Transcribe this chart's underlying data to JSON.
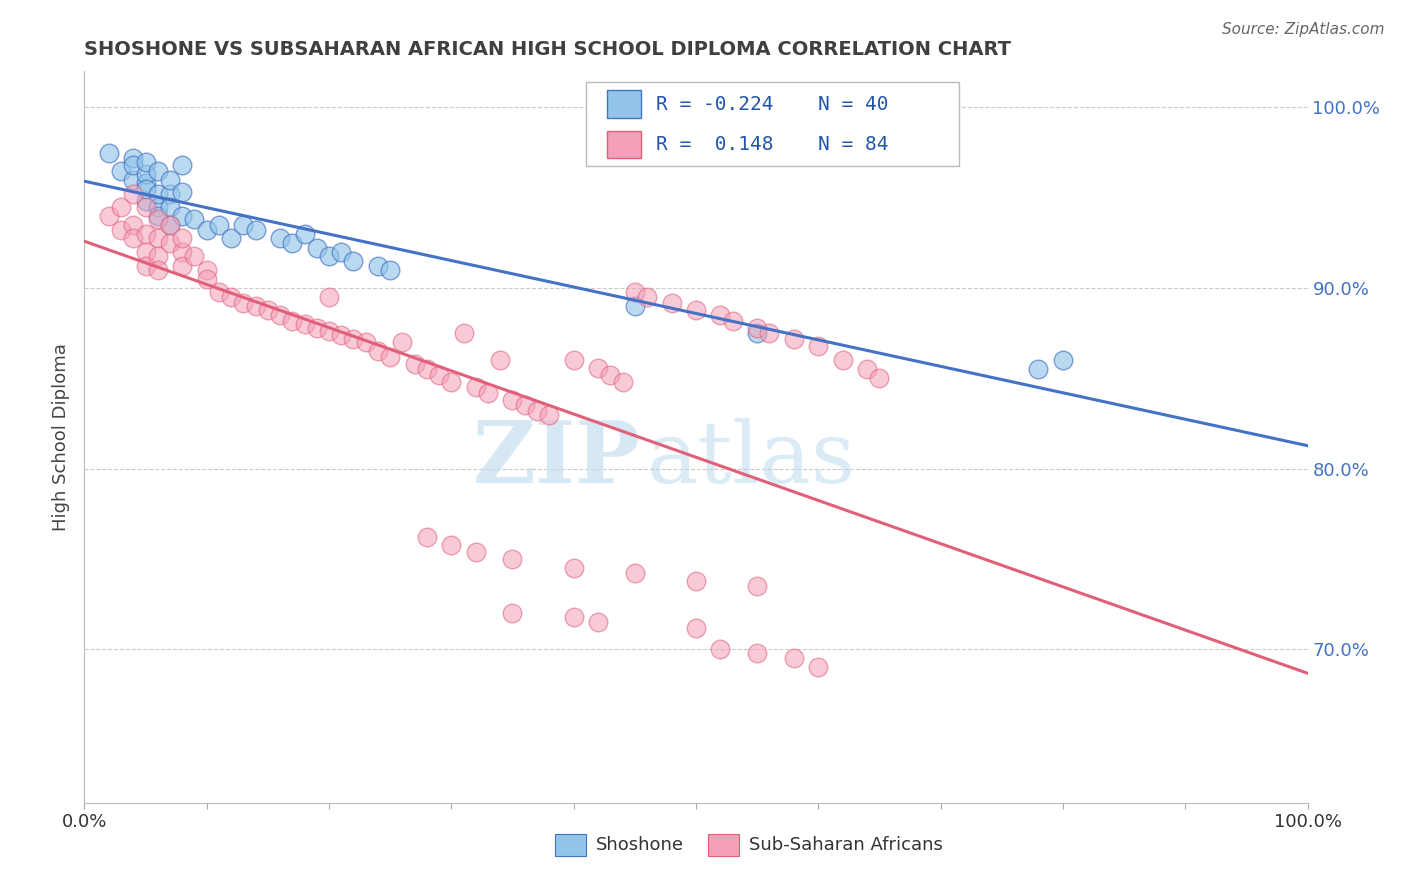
{
  "title": "SHOSHONE VS SUBSAHARAN AFRICAN HIGH SCHOOL DIPLOMA CORRELATION CHART",
  "source_text": "Source: ZipAtlas.com",
  "ylabel": "High School Diploma",
  "watermark_zip": "ZIP",
  "watermark_atlas": "atlas",
  "right_ytick_labels": [
    "70.0%",
    "80.0%",
    "90.0%",
    "100.0%"
  ],
  "right_ytick_values": [
    0.7,
    0.8,
    0.9,
    1.0
  ],
  "xlim": [
    0.0,
    1.0
  ],
  "ylim": [
    0.615,
    1.02
  ],
  "blue_R": -0.224,
  "blue_N": 40,
  "pink_R": 0.148,
  "pink_N": 84,
  "legend_label_blue": "Shoshone",
  "legend_label_pink": "Sub-Saharan Africans",
  "blue_color": "#92C5E8",
  "pink_color": "#F4A0B8",
  "blue_line_color": "#4472C4",
  "pink_line_color": "#E0607A",
  "title_color": "#404040",
  "source_color": "#666666",
  "grid_color": "#cccccc",
  "blue_scatter_x": [
    0.02,
    0.03,
    0.04,
    0.04,
    0.04,
    0.05,
    0.05,
    0.05,
    0.05,
    0.05,
    0.06,
    0.06,
    0.06,
    0.06,
    0.07,
    0.07,
    0.07,
    0.07,
    0.08,
    0.08,
    0.08,
    0.09,
    0.1,
    0.11,
    0.12,
    0.13,
    0.14,
    0.16,
    0.17,
    0.18,
    0.19,
    0.2,
    0.21,
    0.22,
    0.24,
    0.25,
    0.45,
    0.55,
    0.78,
    0.8
  ],
  "blue_scatter_y": [
    0.975,
    0.965,
    0.96,
    0.972,
    0.968,
    0.958,
    0.963,
    0.948,
    0.955,
    0.97,
    0.945,
    0.952,
    0.965,
    0.94,
    0.952,
    0.945,
    0.935,
    0.96,
    0.94,
    0.953,
    0.968,
    0.938,
    0.932,
    0.935,
    0.928,
    0.935,
    0.932,
    0.928,
    0.925,
    0.93,
    0.922,
    0.918,
    0.92,
    0.915,
    0.912,
    0.91,
    0.89,
    0.875,
    0.855,
    0.86
  ],
  "pink_scatter_x": [
    0.02,
    0.03,
    0.03,
    0.04,
    0.04,
    0.04,
    0.05,
    0.05,
    0.05,
    0.05,
    0.06,
    0.06,
    0.06,
    0.06,
    0.07,
    0.07,
    0.08,
    0.08,
    0.08,
    0.09,
    0.1,
    0.1,
    0.11,
    0.12,
    0.13,
    0.14,
    0.15,
    0.16,
    0.17,
    0.18,
    0.19,
    0.2,
    0.2,
    0.21,
    0.22,
    0.23,
    0.24,
    0.25,
    0.26,
    0.27,
    0.28,
    0.29,
    0.3,
    0.31,
    0.32,
    0.33,
    0.34,
    0.35,
    0.36,
    0.37,
    0.38,
    0.4,
    0.42,
    0.43,
    0.44,
    0.45,
    0.46,
    0.48,
    0.5,
    0.52,
    0.53,
    0.55,
    0.56,
    0.58,
    0.6,
    0.62,
    0.64,
    0.65,
    0.28,
    0.3,
    0.32,
    0.35,
    0.4,
    0.45,
    0.5,
    0.55,
    0.35,
    0.4,
    0.42,
    0.5,
    0.52,
    0.55,
    0.58,
    0.6
  ],
  "pink_scatter_y": [
    0.94,
    0.932,
    0.945,
    0.935,
    0.928,
    0.952,
    0.93,
    0.945,
    0.92,
    0.912,
    0.938,
    0.928,
    0.918,
    0.91,
    0.935,
    0.925,
    0.92,
    0.912,
    0.928,
    0.918,
    0.91,
    0.905,
    0.898,
    0.895,
    0.892,
    0.89,
    0.888,
    0.885,
    0.882,
    0.88,
    0.878,
    0.876,
    0.895,
    0.874,
    0.872,
    0.87,
    0.865,
    0.862,
    0.87,
    0.858,
    0.855,
    0.852,
    0.848,
    0.875,
    0.845,
    0.842,
    0.86,
    0.838,
    0.835,
    0.832,
    0.83,
    0.86,
    0.856,
    0.852,
    0.848,
    0.898,
    0.895,
    0.892,
    0.888,
    0.885,
    0.882,
    0.878,
    0.875,
    0.872,
    0.868,
    0.86,
    0.855,
    0.85,
    0.762,
    0.758,
    0.754,
    0.75,
    0.745,
    0.742,
    0.738,
    0.735,
    0.72,
    0.718,
    0.715,
    0.712,
    0.7,
    0.698,
    0.695,
    0.69
  ]
}
